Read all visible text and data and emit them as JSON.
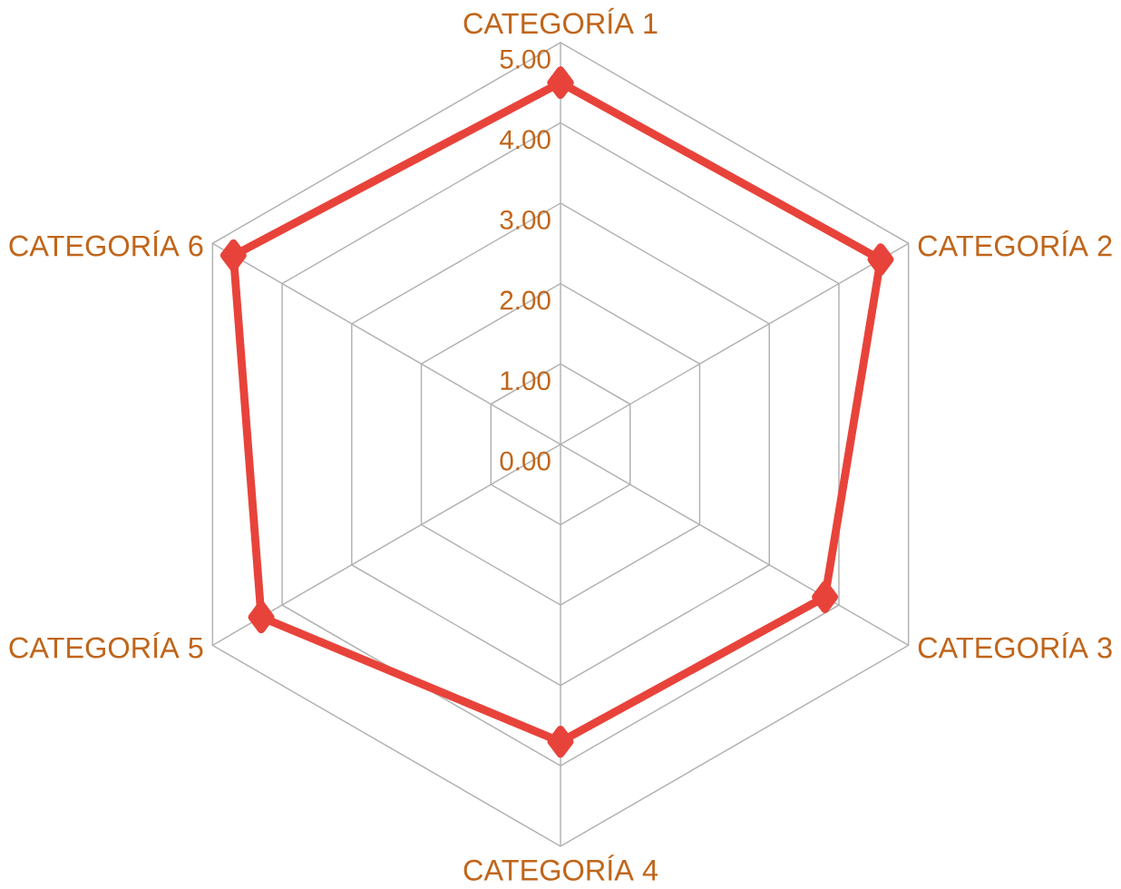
{
  "chart_data": {
    "type": "radar",
    "categories": [
      "CATEGORÍA 1",
      "CATEGORÍA 2",
      "CATEGORÍA 3",
      "CATEGORÍA 4",
      "CATEGORÍA 5",
      "CATEGORÍA 6"
    ],
    "series": [
      {
        "color": "#e8433a",
        "values": [
          4.5,
          4.6,
          3.8,
          3.7,
          4.3,
          4.7
        ]
      }
    ],
    "ylim": [
      0,
      5
    ],
    "yticks": [
      {
        "value": 0,
        "label": "0.00"
      },
      {
        "value": 1,
        "label": "1.00"
      },
      {
        "value": 2,
        "label": "2.00"
      },
      {
        "value": 3,
        "label": "3.00"
      },
      {
        "value": 4,
        "label": "4.00"
      },
      {
        "value": 5,
        "label": "5.00"
      }
    ],
    "grid": true,
    "marker": "diamond",
    "line_style": "solid"
  }
}
